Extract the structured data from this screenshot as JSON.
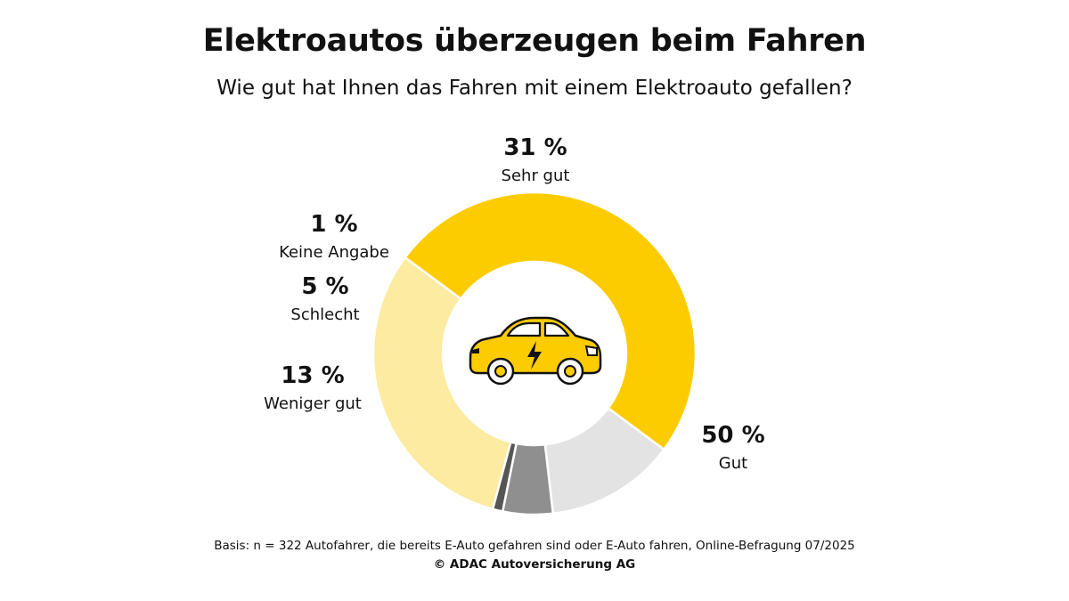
{
  "header": {
    "title": "Elektroautos überzeugen beim Fahren",
    "subtitle": "Wie gut hat Ihnen das Fahren mit einem Elektroauto gefallen?"
  },
  "footer": {
    "basis": "Basis: n = 322 Autofahrer, die bereits E-Auto gefahren sind oder E-Auto fahren, Online-Befragung 07/2025",
    "copyright": "© ADAC Autoversicherung AG"
  },
  "center_icon": "electric-car-icon",
  "chart_data": {
    "type": "pie",
    "style": "donut",
    "title": "Elektroautos überzeugen beim Fahren",
    "subtitle": "Wie gut hat Ihnen das Fahren mit einem Elektroauto gefallen?",
    "slices": [
      {
        "label": "Sehr gut",
        "value": 31,
        "display": "31 %",
        "color": "#FCEBA0"
      },
      {
        "label": "Gut",
        "value": 50,
        "display": "50 %",
        "color": "#FDCC00"
      },
      {
        "label": "Weniger gut",
        "value": 13,
        "display": "13 %",
        "color": "#E3E3E3"
      },
      {
        "label": "Schlecht",
        "value": 5,
        "display": "5 %",
        "color": "#8F8F8F"
      },
      {
        "label": "Keine Angabe",
        "value": 1,
        "display": "1 %",
        "color": "#555555"
      }
    ]
  }
}
